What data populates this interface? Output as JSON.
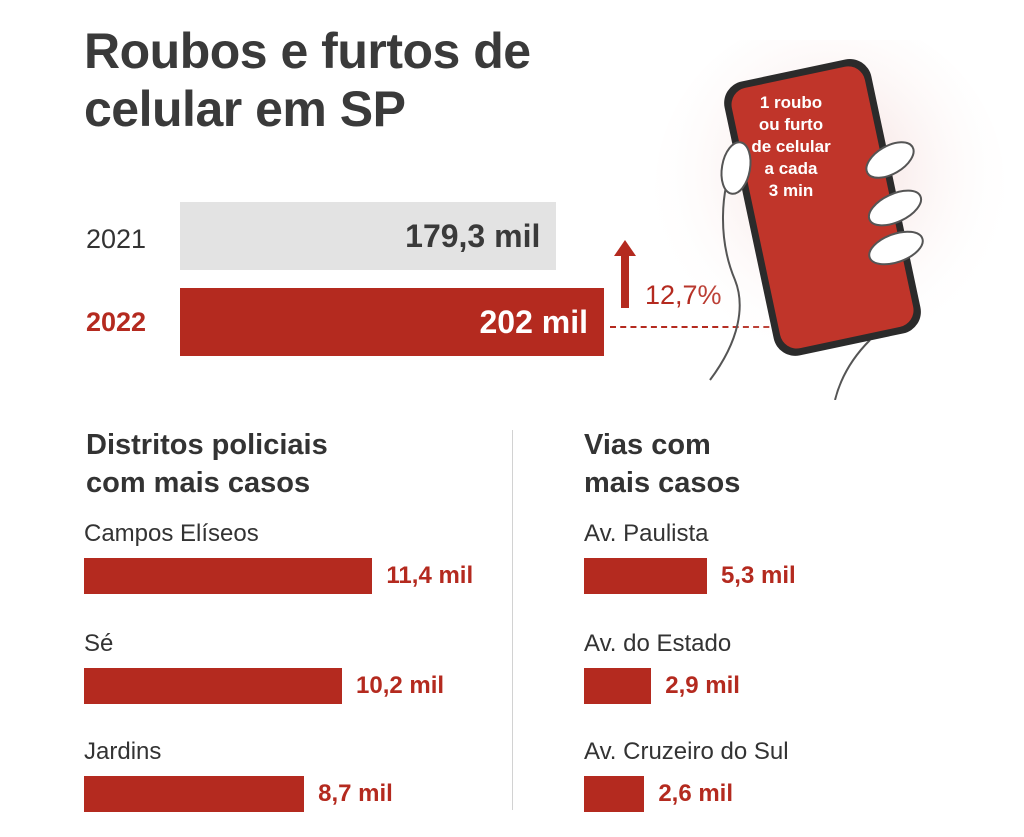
{
  "title": {
    "line1": "Roubos e furtos de",
    "line2": "celular em SP"
  },
  "colors": {
    "accent": "#b42a1f",
    "gray_bar": "#e3e3e3",
    "text": "#333333"
  },
  "phone": {
    "line1": "1 roubo",
    "line2": "ou furto",
    "line3": "de celular",
    "line4": "a cada",
    "line5": "3 min"
  },
  "growth": {
    "label": "12,7%",
    "icon": "arrow-up-icon"
  },
  "chart_data": [
    {
      "type": "bar",
      "orientation": "horizontal",
      "categories": [
        "2021",
        "2022"
      ],
      "values": [
        179.3,
        202
      ],
      "value_labels": [
        "179,3 mil",
        "202 mil"
      ],
      "unit": "mil"
    },
    {
      "type": "bar",
      "orientation": "horizontal",
      "title": "Distritos policiais com mais casos",
      "categories": [
        "Campos Elíseos",
        "Sé",
        "Jardins"
      ],
      "values": [
        11.4,
        10.2,
        8.7
      ],
      "value_labels": [
        "11,4 mil",
        "10,2 mil",
        "8,7 mil"
      ],
      "unit": "mil"
    },
    {
      "type": "bar",
      "orientation": "horizontal",
      "title": "Vias com mais casos",
      "categories": [
        "Av. Paulista",
        "Av. do Estado",
        "Av. Cruzeiro do Sul"
      ],
      "values": [
        5.3,
        2.9,
        2.6
      ],
      "value_labels": [
        "5,3 mil",
        "2,9 mil",
        "2,6 mil"
      ],
      "unit": "mil"
    }
  ],
  "sections": {
    "left_title_1": "Distritos policiais",
    "left_title_2": "com mais casos",
    "right_title_1": "Vias com",
    "right_title_2": "mais casos"
  }
}
